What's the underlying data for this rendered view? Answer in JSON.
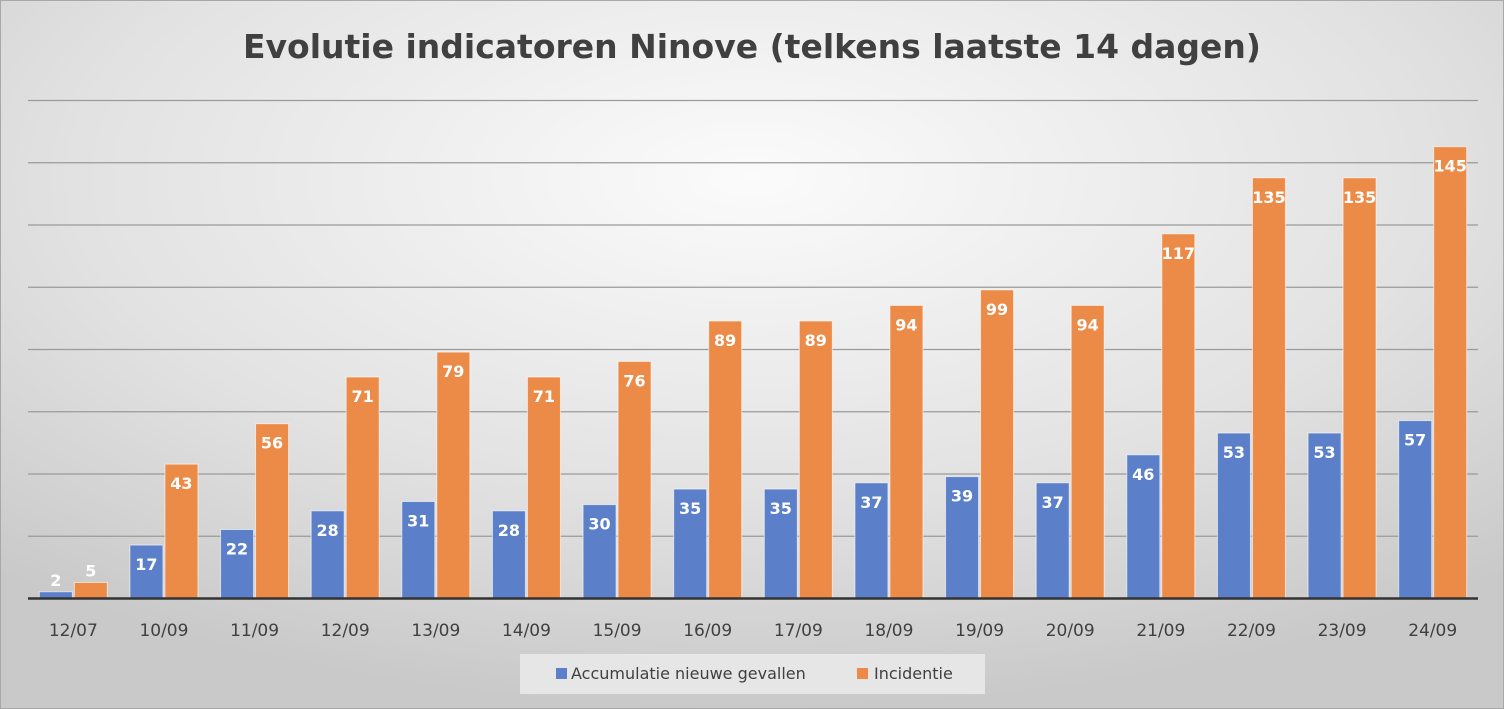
{
  "chart_data": {
    "type": "bar",
    "title": "Evolutie indicatoren Ninove (telkens laatste 14 dagen)",
    "xlabel": "",
    "ylabel": "",
    "ylim": [
      0,
      160
    ],
    "grid": true,
    "gridline_step": 20,
    "legend_position": "bottom",
    "categories": [
      "12/07",
      "10/09",
      "11/09",
      "12/09",
      "13/09",
      "14/09",
      "15/09",
      "16/09",
      "17/09",
      "18/09",
      "19/09",
      "20/09",
      "21/09",
      "22/09",
      "23/09",
      "24/09"
    ],
    "series": [
      {
        "name": "Accumulatie nieuwe gevallen",
        "color": "#5b7fc9",
        "values": [
          2,
          17,
          22,
          28,
          31,
          28,
          30,
          35,
          35,
          37,
          39,
          37,
          46,
          53,
          53,
          57
        ]
      },
      {
        "name": "Incidentie",
        "color": "#ec8a48",
        "values": [
          5,
          43,
          56,
          71,
          79,
          71,
          76,
          89,
          89,
          94,
          99,
          94,
          117,
          135,
          135,
          145
        ]
      }
    ]
  }
}
